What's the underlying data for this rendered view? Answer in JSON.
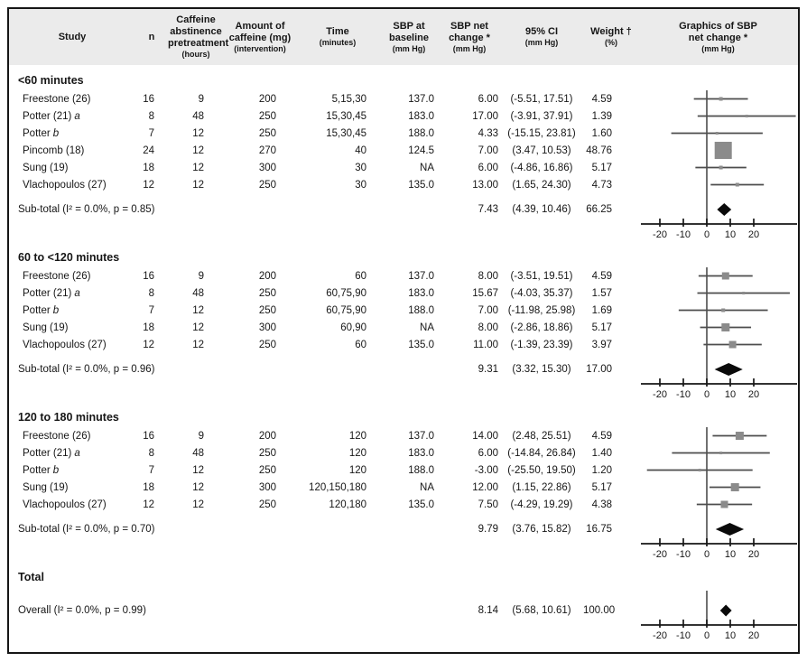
{
  "figure": {
    "kind": "forest-plot-figure"
  },
  "columns": [
    {
      "key": "study",
      "lines": [
        {
          "t": "Study"
        }
      ]
    },
    {
      "key": "n",
      "lines": [
        {
          "t": "n"
        }
      ]
    },
    {
      "key": "abstinence",
      "lines": [
        {
          "t": "Caffeine"
        },
        {
          "t": "abstinence"
        },
        {
          "t": "pretreatment"
        },
        {
          "t": "(hours)",
          "small": true
        }
      ]
    },
    {
      "key": "caffeine-amount",
      "lines": [
        {
          "t": "Amount of"
        },
        {
          "t": "caffeine (mg)"
        },
        {
          "t": "(intervention)",
          "small": true
        }
      ]
    },
    {
      "key": "time",
      "lines": [
        {
          "t": "Time"
        },
        {
          "t": "(minutes)",
          "small": true
        }
      ]
    },
    {
      "key": "sbp-baseline",
      "lines": [
        {
          "t": "SBP at"
        },
        {
          "t": "baseline"
        },
        {
          "t": "(mm Hg)",
          "small": true
        }
      ]
    },
    {
      "key": "sbp-net-change",
      "lines": [
        {
          "t": "SBP net"
        },
        {
          "t": "change *"
        },
        {
          "t": "(mm Hg)",
          "small": true
        }
      ]
    },
    {
      "key": "ci",
      "lines": [
        {
          "t": "95% CI"
        },
        {
          "t": "(mm Hg)",
          "small": true
        }
      ]
    },
    {
      "key": "weight",
      "lines": [
        {
          "t": "Weight †"
        },
        {
          "t": "(%)",
          "small": true
        }
      ]
    },
    {
      "key": "graphics",
      "lines": [
        {
          "t": "Graphics of SBP"
        },
        {
          "t": "net change *"
        },
        {
          "t": "(mm Hg)",
          "small": true
        }
      ]
    }
  ],
  "chart_data": {
    "type": "forest",
    "axis": {
      "ticks": [
        -20,
        -10,
        0,
        10,
        20
      ],
      "range": [
        -28,
        39
      ],
      "unit": "mm Hg"
    },
    "sections": [
      {
        "label": "<60 minutes",
        "rows": [
          {
            "study": "Freestone (26)",
            "suffix": "",
            "n": "16",
            "abst": "9",
            "amount": "200",
            "time": "5,15,30",
            "baseline": "137.0",
            "change": "6.00",
            "ci": "(-5.51, 17.51)",
            "weight": "4.59",
            "est": 6.0,
            "lo": -5.51,
            "hi": 17.51,
            "size": 4
          },
          {
            "study": "Potter (21)",
            "suffix": "a",
            "n": "8",
            "abst": "48",
            "amount": "250",
            "time": "15,30,45",
            "baseline": "183.0",
            "change": "17.00",
            "ci": "(-3.91, 37.91)",
            "weight": "1.39",
            "est": 17.0,
            "lo": -3.91,
            "hi": 37.91,
            "size": 3
          },
          {
            "study": "Potter",
            "suffix": "b",
            "n": "7",
            "abst": "12",
            "amount": "250",
            "time": "15,30,45",
            "baseline": "188.0",
            "change": "4.33",
            "ci": "(-15.15, 23.81)",
            "weight": "1.60",
            "est": 4.33,
            "lo": -15.15,
            "hi": 23.81,
            "size": 3
          },
          {
            "study": "Pincomb (18)",
            "suffix": "",
            "n": "24",
            "abst": "12",
            "amount": "270",
            "time": "40",
            "baseline": "124.5",
            "change": "7.00",
            "ci": "(3.47, 10.53)",
            "weight": "48.76",
            "est": 7.0,
            "lo": 3.47,
            "hi": 10.53,
            "size": 19
          },
          {
            "study": "Sung (19)",
            "suffix": "",
            "n": "18",
            "abst": "12",
            "amount": "300",
            "time": "30",
            "baseline": "NA",
            "change": "6.00",
            "ci": "(-4.86, 16.86)",
            "weight": "5.17",
            "est": 6.0,
            "lo": -4.86,
            "hi": 16.86,
            "size": 4
          },
          {
            "study": "Vlachopoulos (27)",
            "suffix": "",
            "n": "12",
            "abst": "12",
            "amount": "250",
            "time": "30",
            "baseline": "135.0",
            "change": "13.00",
            "ci": "(1.65, 24.30)",
            "weight": "4.73",
            "est": 13.0,
            "lo": 1.65,
            "hi": 24.3,
            "size": 4
          }
        ],
        "subtotal": {
          "label": "Sub-total (I² = 0.0%, p = 0.85)",
          "change": "7.43",
          "ci": "(4.39, 10.46)",
          "weight": "66.25",
          "est": 7.43,
          "lo": 4.39,
          "hi": 10.46
        }
      },
      {
        "label": "60 to <120 minutes",
        "rows": [
          {
            "study": "Freestone (26)",
            "suffix": "",
            "n": "16",
            "abst": "9",
            "amount": "200",
            "time": "60",
            "baseline": "137.0",
            "change": "8.00",
            "ci": "(-3.51, 19.51)",
            "weight": "4.59",
            "est": 8.0,
            "lo": -3.51,
            "hi": 19.51,
            "size": 8
          },
          {
            "study": "Potter (21)",
            "suffix": "a",
            "n": "8",
            "abst": "48",
            "amount": "250",
            "time": "60,75,90",
            "baseline": "183.0",
            "change": "15.67",
            "ci": "(-4.03, 35.37)",
            "weight": "1.57",
            "est": 15.67,
            "lo": -4.03,
            "hi": 35.37,
            "size": 3
          },
          {
            "study": "Potter",
            "suffix": "b",
            "n": "7",
            "abst": "12",
            "amount": "250",
            "time": "60,75,90",
            "baseline": "188.0",
            "change": "7.00",
            "ci": "(-11.98, 25.98)",
            "weight": "1.69",
            "est": 7.0,
            "lo": -11.98,
            "hi": 25.98,
            "size": 4
          },
          {
            "study": "Sung (19)",
            "suffix": "",
            "n": "18",
            "abst": "12",
            "amount": "300",
            "time": "60,90",
            "baseline": "NA",
            "change": "8.00",
            "ci": "(-2.86, 18.86)",
            "weight": "5.17",
            "est": 8.0,
            "lo": -2.86,
            "hi": 18.86,
            "size": 9
          },
          {
            "study": "Vlachopoulos (27)",
            "suffix": "",
            "n": "12",
            "abst": "12",
            "amount": "250",
            "time": "60",
            "baseline": "135.0",
            "change": "11.00",
            "ci": "(-1.39, 23.39)",
            "weight": "3.97",
            "est": 11.0,
            "lo": -1.39,
            "hi": 23.39,
            "size": 8
          }
        ],
        "subtotal": {
          "label": "Sub-total (I² = 0.0%, p = 0.96)",
          "change": "9.31",
          "ci": "(3.32, 15.30)",
          "weight": "17.00",
          "est": 9.31,
          "lo": 3.32,
          "hi": 15.3
        }
      },
      {
        "label": "120 to 180 minutes",
        "rows": [
          {
            "study": "Freestone (26)",
            "suffix": "",
            "n": "16",
            "abst": "9",
            "amount": "200",
            "time": "120",
            "baseline": "137.0",
            "change": "14.00",
            "ci": "(2.48, 25.51)",
            "weight": "4.59",
            "est": 14.0,
            "lo": 2.48,
            "hi": 25.51,
            "size": 9
          },
          {
            "study": "Potter (21)",
            "suffix": "a",
            "n": "8",
            "abst": "48",
            "amount": "250",
            "time": "120",
            "baseline": "183.0",
            "change": "6.00",
            "ci": "(-14.84, 26.84)",
            "weight": "1.40",
            "est": 6.0,
            "lo": -14.84,
            "hi": 26.84,
            "size": 3
          },
          {
            "study": "Potter",
            "suffix": "b",
            "n": "7",
            "abst": "12",
            "amount": "250",
            "time": "120",
            "baseline": "188.0",
            "change": "-3.00",
            "ci": "(-25.50, 19.50)",
            "weight": "1.20",
            "est": -3.0,
            "lo": -25.5,
            "hi": 19.5,
            "size": 3
          },
          {
            "study": "Sung (19)",
            "suffix": "",
            "n": "18",
            "abst": "12",
            "amount": "300",
            "time": "120,150,180",
            "baseline": "NA",
            "change": "12.00",
            "ci": "(1.15, 22.86)",
            "weight": "5.17",
            "est": 12.0,
            "lo": 1.15,
            "hi": 22.86,
            "size": 9
          },
          {
            "study": "Vlachopoulos (27)",
            "suffix": "",
            "n": "12",
            "abst": "12",
            "amount": "250",
            "time": "120,180",
            "baseline": "135.0",
            "change": "7.50",
            "ci": "(-4.29, 19.29)",
            "weight": "4.38",
            "est": 7.5,
            "lo": -4.29,
            "hi": 19.29,
            "size": 8
          }
        ],
        "subtotal": {
          "label": "Sub-total (I² = 0.0%, p = 0.70)",
          "change": "9.79",
          "ci": "(3.76, 15.82)",
          "weight": "16.75",
          "est": 9.79,
          "lo": 3.76,
          "hi": 15.82
        }
      }
    ],
    "total": {
      "label": "Total",
      "overall": {
        "label": "Overall (I² = 0.0%, p = 0.99)",
        "change": "8.14",
        "ci": "(5.68, 10.61)",
        "weight": "100.00",
        "est": 8.14,
        "lo": 5.68,
        "hi": 10.61
      }
    },
    "colors": {
      "square": "#8b8b8b",
      "ci_line": "#4d4d4d",
      "diamond": "#0a0a0a",
      "axis": "#161616",
      "header_bg": "#ebebeb"
    }
  }
}
